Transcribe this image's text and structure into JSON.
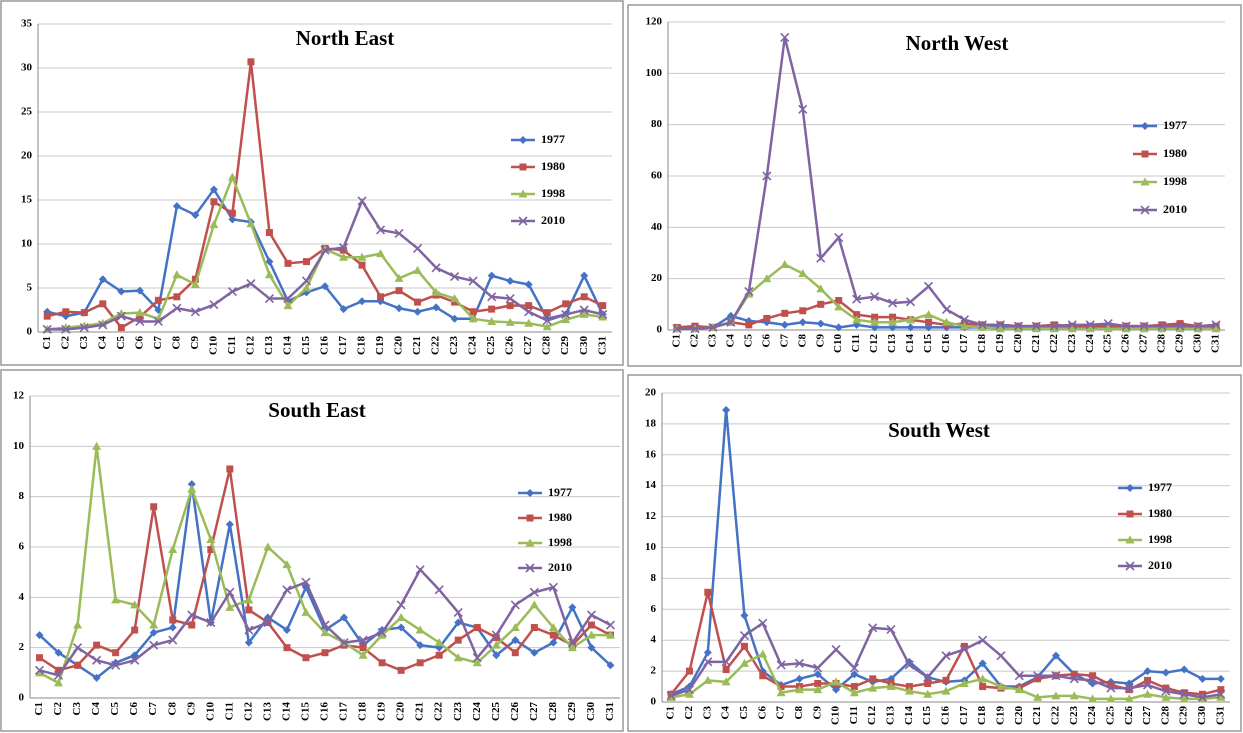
{
  "chart_data": [
    {
      "type": "line",
      "title": "North East",
      "categories": [
        "C1",
        "C2",
        "C3",
        "C4",
        "C5",
        "C6",
        "C7",
        "C8",
        "C9",
        "C10",
        "C11",
        "C12",
        "C13",
        "C14",
        "C15",
        "C16",
        "C17",
        "C18",
        "C19",
        "C20",
        "C21",
        "C22",
        "C23",
        "C24",
        "C25",
        "C26",
        "C27",
        "C28",
        "C29",
        "C30",
        "C31"
      ],
      "ylim": [
        0,
        35
      ],
      "yticks": [
        0,
        5,
        10,
        15,
        20,
        25,
        30,
        35
      ],
      "grid": true,
      "legend": "right",
      "series": [
        {
          "name": "1977",
          "color": "#4472c4",
          "marker": "diamond",
          "values": [
            2.3,
            1.8,
            2.2,
            6,
            4.6,
            4.7,
            2.5,
            14.3,
            13.3,
            16.2,
            12.8,
            12.5,
            8,
            3.5,
            4.5,
            5.2,
            2.6,
            3.5,
            3.5,
            2.7,
            2.3,
            2.8,
            1.5,
            1.5,
            6.4,
            5.8,
            5.4,
            1.5,
            2,
            6.4,
            2
          ]
        },
        {
          "name": "1980",
          "color": "#c0504d",
          "marker": "square",
          "values": [
            1.8,
            2.3,
            2.2,
            3.2,
            0.5,
            1.7,
            3.6,
            4,
            6,
            14.8,
            13.5,
            30.7,
            11.3,
            7.8,
            8,
            9.5,
            9.3,
            7.6,
            4,
            4.7,
            3.4,
            4.2,
            3.4,
            2.3,
            2.6,
            3,
            3,
            2.2,
            3.2,
            4,
            3
          ]
        },
        {
          "name": "1998",
          "color": "#9bbb59",
          "marker": "triangle",
          "values": [
            0.3,
            0.5,
            0.7,
            1,
            2.1,
            2.2,
            1.5,
            6.5,
            5.4,
            12.2,
            17.6,
            12.3,
            6.5,
            3,
            5,
            9.4,
            8.5,
            8.5,
            8.9,
            6.1,
            7,
            4.5,
            3.8,
            1.5,
            1.2,
            1.1,
            1,
            0.6,
            1.4,
            2,
            1.7
          ]
        },
        {
          "name": "2010",
          "color": "#8064a2",
          "marker": "x",
          "values": [
            0.3,
            0.3,
            0.5,
            0.8,
            1.8,
            1.2,
            1.2,
            2.7,
            2.3,
            3.1,
            4.6,
            5.5,
            3.8,
            3.8,
            5.8,
            9.3,
            9.6,
            14.9,
            11.6,
            11.2,
            9.5,
            7.3,
            6.3,
            5.8,
            4,
            3.8,
            2.3,
            1.3,
            2,
            2.5,
            2
          ]
        }
      ]
    },
    {
      "type": "line",
      "title": "North West",
      "categories": [
        "C1",
        "C2",
        "C3",
        "C4",
        "C5",
        "C6",
        "C7",
        "C8",
        "C9",
        "C10",
        "C11",
        "C12",
        "C13",
        "C14",
        "C15",
        "C16",
        "C17",
        "C18",
        "C19",
        "C20",
        "C21",
        "C22",
        "C23",
        "C24",
        "C25",
        "C26",
        "C27",
        "C28",
        "C29",
        "C30",
        "C31"
      ],
      "ylim": [
        0,
        120
      ],
      "yticks": [
        0,
        20,
        40,
        60,
        80,
        100,
        120
      ],
      "grid": true,
      "legend": "right",
      "series": [
        {
          "name": "1977",
          "color": "#4472c4",
          "marker": "diamond",
          "values": [
            0.5,
            0.5,
            1,
            5.5,
            3.5,
            3,
            2,
            3,
            2.5,
            1,
            2,
            1,
            1,
            1,
            1,
            1,
            1,
            1,
            1,
            1,
            1,
            1,
            1,
            1,
            1,
            1,
            1,
            1,
            1,
            1,
            1
          ]
        },
        {
          "name": "1980",
          "color": "#c0504d",
          "marker": "square",
          "values": [
            1,
            1.5,
            1,
            3,
            2,
            4.5,
            6.5,
            7.5,
            10,
            11.5,
            6,
            5,
            5,
            4,
            3,
            2,
            2.5,
            2,
            2,
            1.5,
            1.5,
            2,
            1.5,
            1.5,
            1.5,
            1.5,
            1.5,
            2,
            2.5,
            1.5,
            1.5
          ]
        },
        {
          "name": "1998",
          "color": "#9bbb59",
          "marker": "triangle",
          "values": [
            0.5,
            0.5,
            1,
            3,
            14,
            20,
            25.5,
            22,
            16,
            9,
            4,
            3,
            3,
            4,
            6,
            3,
            1.5,
            1,
            0.5,
            0.5,
            0.5,
            0.5,
            0.5,
            0.5,
            0.5,
            0.5,
            0.5,
            0.5,
            0.5,
            0.5,
            0.5
          ]
        },
        {
          "name": "2010",
          "color": "#8064a2",
          "marker": "x",
          "values": [
            0.5,
            0.5,
            1,
            3,
            15,
            60,
            114,
            86,
            28,
            36,
            12,
            13,
            10.5,
            11,
            17,
            8,
            4,
            2,
            2,
            1.5,
            1.5,
            1.5,
            2,
            2,
            2.5,
            1.5,
            1.5,
            1.5,
            1.5,
            1.5,
            2
          ]
        }
      ]
    },
    {
      "type": "line",
      "title": "South East",
      "categories": [
        "C1",
        "C2",
        "C3",
        "C4",
        "C5",
        "C6",
        "C7",
        "C8",
        "C9",
        "C10",
        "C11",
        "C12",
        "C13",
        "C14",
        "C15",
        "C16",
        "C17",
        "C18",
        "C19",
        "C20",
        "C21",
        "C22",
        "C23",
        "C24",
        "C25",
        "C26",
        "C27",
        "C28",
        "C29",
        "C30",
        "C31"
      ],
      "ylim": [
        0,
        12
      ],
      "yticks": [
        0,
        2,
        4,
        6,
        8,
        10,
        12
      ],
      "grid": true,
      "legend": "right",
      "series": [
        {
          "name": "1977",
          "color": "#4472c4",
          "marker": "diamond",
          "values": [
            2.5,
            1.8,
            1.3,
            0.8,
            1.4,
            1.7,
            2.6,
            2.8,
            8.5,
            3,
            6.9,
            2.2,
            3.2,
            2.7,
            4.4,
            2.7,
            3.2,
            2.1,
            2.7,
            2.8,
            2.1,
            2,
            3,
            2.8,
            1.7,
            2.3,
            1.8,
            2.2,
            3.6,
            2,
            1.3
          ]
        },
        {
          "name": "1980",
          "color": "#c0504d",
          "marker": "square",
          "values": [
            1.6,
            1.1,
            1.3,
            2.1,
            1.8,
            2.7,
            7.6,
            3.1,
            2.9,
            5.9,
            9.1,
            3.5,
            3,
            2,
            1.6,
            1.8,
            2.1,
            2,
            1.4,
            1.1,
            1.4,
            1.7,
            2.3,
            2.8,
            2.4,
            1.8,
            2.8,
            2.5,
            2.1,
            2.9,
            2.5
          ]
        },
        {
          "name": "1998",
          "color": "#9bbb59",
          "marker": "triangle",
          "values": [
            1,
            0.6,
            2.9,
            10,
            3.9,
            3.7,
            2.9,
            5.9,
            8.3,
            6.3,
            3.6,
            3.9,
            6,
            5.3,
            3.4,
            2.6,
            2.2,
            1.7,
            2.5,
            3.2,
            2.7,
            2.2,
            1.6,
            1.4,
            2.1,
            2.8,
            3.7,
            2.8,
            2,
            2.5,
            2.5
          ]
        },
        {
          "name": "2010",
          "color": "#8064a2",
          "marker": "x",
          "values": [
            1.1,
            0.9,
            2,
            1.5,
            1.3,
            1.5,
            2.1,
            2.3,
            3.3,
            3,
            4.2,
            2.7,
            3,
            4.3,
            4.6,
            2.9,
            2.2,
            2.3,
            2.6,
            3.7,
            5.1,
            4.3,
            3.4,
            1.6,
            2.5,
            3.7,
            4.2,
            4.4,
            2.2,
            3.3,
            2.9
          ]
        }
      ]
    },
    {
      "type": "line",
      "title": "South West",
      "categories": [
        "C1",
        "C2",
        "C3",
        "C4",
        "C5",
        "C6",
        "C7",
        "C8",
        "C9",
        "C10",
        "C11",
        "C12",
        "C13",
        "C14",
        "C15",
        "C16",
        "C17",
        "C18",
        "C19",
        "C20",
        "C21",
        "C22",
        "C23",
        "C24",
        "C25",
        "C26",
        "C27",
        "C28",
        "C29",
        "C30",
        "C31"
      ],
      "ylim": [
        0,
        20
      ],
      "yticks": [
        0,
        2,
        4,
        6,
        8,
        10,
        12,
        14,
        16,
        18,
        20
      ],
      "grid": true,
      "legend": "right",
      "series": [
        {
          "name": "1977",
          "color": "#4472c4",
          "marker": "diamond",
          "values": [
            0.5,
            1,
            3.2,
            18.9,
            5.6,
            2,
            1.1,
            1.5,
            1.8,
            0.8,
            1.8,
            1.3,
            1.5,
            2.6,
            1.6,
            1.3,
            1.4,
            2.5,
            1,
            1,
            1.6,
            3,
            1.8,
            1.2,
            1.3,
            1.2,
            2,
            1.9,
            2.1,
            1.5,
            1.5
          ]
        },
        {
          "name": "1980",
          "color": "#c0504d",
          "marker": "square",
          "values": [
            0.5,
            2,
            7.1,
            2.1,
            3.6,
            1.7,
            1,
            1,
            1.2,
            1.2,
            1,
            1.5,
            1.2,
            1,
            1.2,
            1.4,
            3.6,
            1,
            0.9,
            0.9,
            1.5,
            1.7,
            1.8,
            1.7,
            1.1,
            0.8,
            1.4,
            0.9,
            0.6,
            0.5,
            0.8
          ]
        },
        {
          "name": "1998",
          "color": "#9bbb59",
          "marker": "triangle",
          "values": [
            0.3,
            0.5,
            1.4,
            1.3,
            2.5,
            3.1,
            0.6,
            0.8,
            0.8,
            1.3,
            0.6,
            0.9,
            1,
            0.7,
            0.5,
            0.7,
            1.2,
            1.5,
            1,
            0.8,
            0.3,
            0.4,
            0.4,
            0.2,
            0.2,
            0.2,
            0.5,
            0.3,
            0.2,
            0.2,
            0.3
          ]
        },
        {
          "name": "2010",
          "color": "#8064a2",
          "marker": "x",
          "values": [
            0.4,
            0.8,
            2.6,
            2.6,
            4.3,
            5.1,
            2.4,
            2.5,
            2.2,
            3.4,
            2.2,
            4.8,
            4.7,
            2.4,
            1.6,
            3,
            3.4,
            4,
            3,
            1.7,
            1.7,
            1.7,
            1.5,
            1.4,
            0.9,
            0.9,
            1.1,
            0.7,
            0.5,
            0.3,
            0.5
          ]
        }
      ]
    }
  ]
}
